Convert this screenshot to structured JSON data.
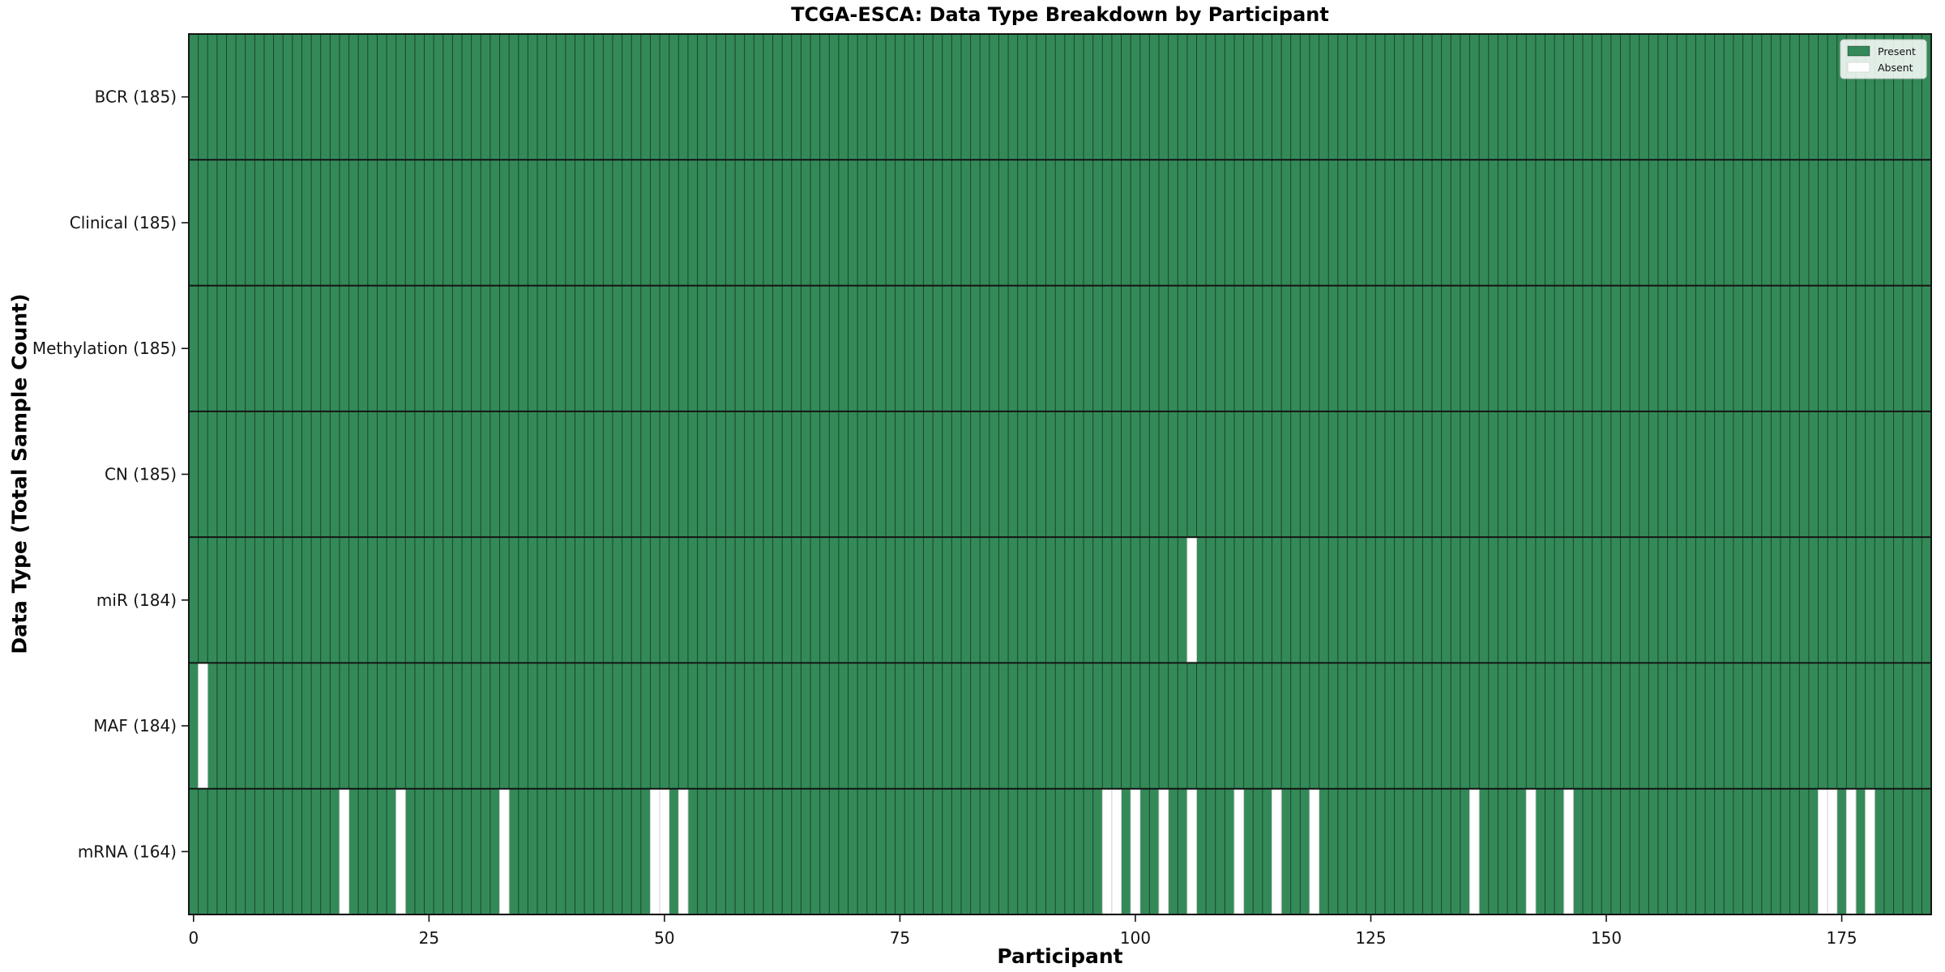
{
  "title": "TCGA-ESCA: Data Type Breakdown by Participant",
  "chart_data": {
    "type": "heatmap",
    "title": "TCGA-ESCA: Data Type Breakdown by Participant",
    "xlabel": "Participant",
    "ylabel": "Data Type (Total Sample Count)",
    "n_participants": 185,
    "x_ticks": [
      0,
      25,
      50,
      75,
      100,
      125,
      150,
      175
    ],
    "grid": true,
    "legend_position": "upper right",
    "legend": [
      {
        "label": "Present",
        "color": "#338a58"
      },
      {
        "label": "Absent",
        "color": "#ffffff"
      }
    ],
    "rows": [
      {
        "label": "BCR (185)",
        "total": 185,
        "absent": []
      },
      {
        "label": "Clinical (185)",
        "total": 185,
        "absent": []
      },
      {
        "label": "Methylation (185)",
        "total": 185,
        "absent": []
      },
      {
        "label": "CN (185)",
        "total": 185,
        "absent": []
      },
      {
        "label": "miR (184)",
        "total": 184,
        "absent": [
          106
        ]
      },
      {
        "label": "MAF (184)",
        "total": 184,
        "absent": [
          1
        ]
      },
      {
        "label": "mRNA (164)",
        "total": 164,
        "absent": [
          16,
          22,
          33,
          49,
          50,
          52,
          97,
          98,
          100,
          103,
          106,
          111,
          115,
          119,
          136,
          142,
          146,
          173,
          174,
          176,
          178
        ]
      }
    ],
    "colors": {
      "present": "#338a58",
      "absent": "#ffffff",
      "cell_divider": "rgba(0,0,0,0.5)",
      "row_divider": "#141414",
      "absent_edge": "#d4d4d4",
      "spine": "#141414",
      "legend_bg": "rgba(255,255,255,0.85)",
      "legend_border": "#cccccc"
    }
  }
}
